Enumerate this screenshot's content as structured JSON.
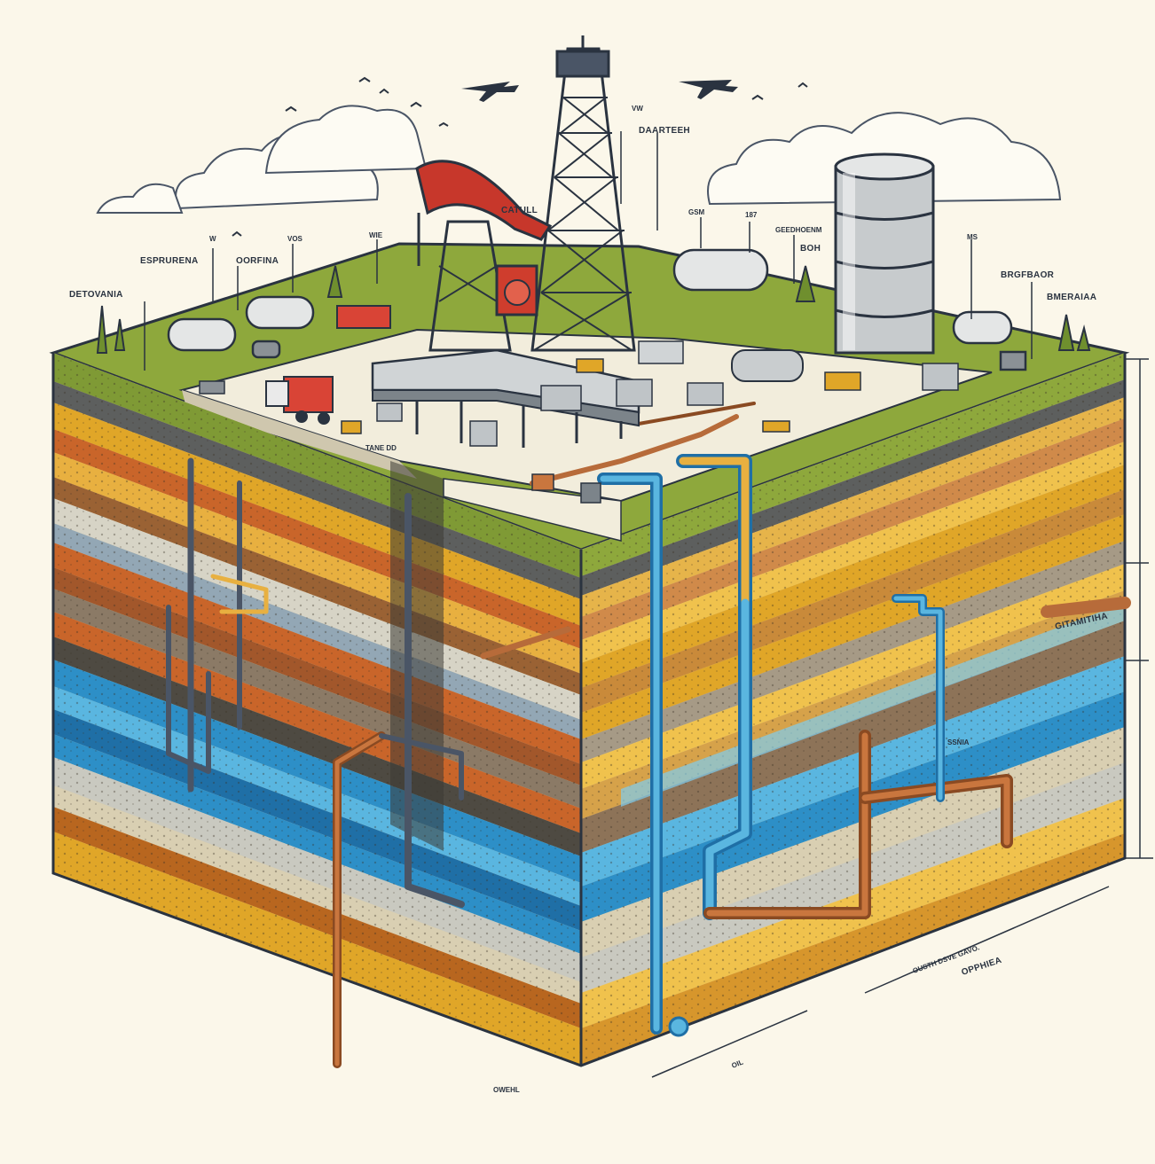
{
  "labels": {
    "detovania": "DETOVANIA",
    "esprurena": "ESPRURENA",
    "oorfina": "OORFINA",
    "w": "W",
    "vos": "VOS",
    "wie": "WIE",
    "catull": "CATULL",
    "daarteeh": "DAARTEEH",
    "vw": "VW",
    "gsm": "GSM",
    "n_187": "187",
    "geedhoenm": "GEEDHOENM",
    "boh": "BOH",
    "ms": "MS",
    "brgfbaor": "BRGFBAOR",
    "bmeraiaa": "BMERAIAA",
    "gitamitiha": "GITAMITIHA",
    "ssnia": "SSNIA",
    "ousth_dsve": "OUSTH DSVE GAVO.",
    "opphiea": "OPPHIEA",
    "oil": "OIL",
    "owehl": "OWEHL",
    "small_tag": "TANE DD"
  },
  "colors": {
    "background": "#fbf7ea",
    "grass": "#8ea83c",
    "yard": "#f2eddc",
    "ochre": "#e0a628",
    "rust": "#c9652a",
    "aqua": "#2d8fc7",
    "slate": "#6b6f72",
    "sand": "#d8c9a6",
    "copper_pipe": "#b76b3a",
    "outline": "#2a3340"
  },
  "icons": [
    "pumpjack-icon",
    "drilling-derrick-icon",
    "storage-tank-icon",
    "tank-truck-icon",
    "airplane-icon",
    "bird-icon",
    "tree-icon",
    "cloud-icon"
  ]
}
